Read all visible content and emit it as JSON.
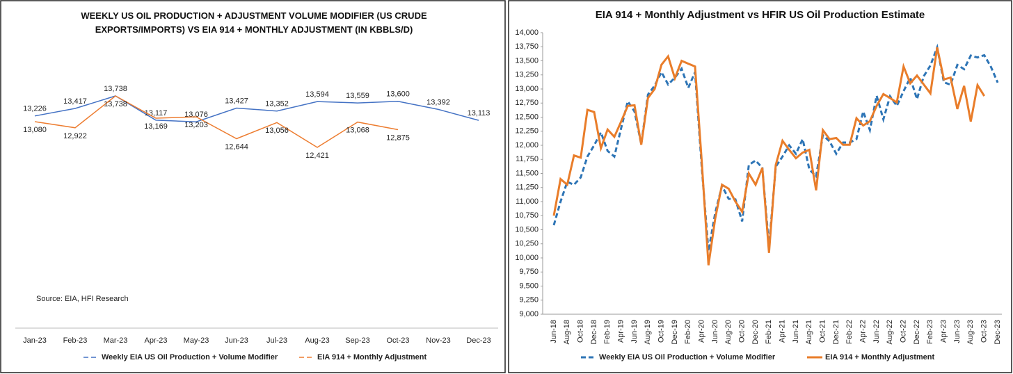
{
  "chart_data": [
    {
      "type": "line",
      "title": "WEEKLY US OIL PRODUCTION + ADJUSTMENT VOLUME MODIFIER (US CRUDE EXPORTS/IMPORTS) VS EIA 914 + MONTHLY ADJUSTMENT (IN KBBLS/D)",
      "source": "Source: EIA, HFI Research",
      "categories": [
        "Jan-23",
        "Feb-23",
        "Mar-23",
        "Apr-23",
        "May-23",
        "Jun-23",
        "Jul-23",
        "Aug-23",
        "Sep-23",
        "Oct-23",
        "Nov-23",
        "Dec-23"
      ],
      "series": [
        {
          "name": "Weekly EIA US Oil Production + Volume Modifier",
          "color": "#4472c4",
          "line_style": "solid",
          "values": [
            13226,
            13417,
            13738,
            13117,
            13076,
            13427,
            13352,
            13594,
            13559,
            13600,
            13392,
            13113
          ],
          "value_labels": [
            "13,226",
            "13,417",
            "13,738",
            "13,117",
            "13,076",
            "13,427",
            "13,352",
            "13,594",
            "13,559",
            "13,600",
            "13,392",
            "13,113"
          ]
        },
        {
          "name": "EIA 914 + Monthly Adjustment",
          "color": "#ed7d31",
          "line_style": "solid",
          "values": [
            13080,
            12922,
            13738,
            13169,
            13203,
            12644,
            13056,
            12421,
            13068,
            12875,
            null,
            null
          ],
          "value_labels": [
            "13,080",
            "12,922",
            "13,738",
            "13,169",
            "13,203",
            "12,644",
            "13,056",
            "12,421",
            "13,068",
            "12,875",
            null,
            null
          ]
        }
      ]
    },
    {
      "type": "line",
      "title": "EIA 914 + Monthly Adjustment vs HFIR US Oil Production Estimate",
      "categories": [
        "Jun-18",
        null,
        "Aug-18",
        null,
        "Oct-18",
        null,
        "Dec-18",
        null,
        "Feb-19",
        null,
        "Apr-19",
        null,
        "Jun-19",
        null,
        "Aug-19",
        null,
        "Oct-19",
        null,
        "Dec-19",
        null,
        "Feb-20",
        null,
        "Apr-20",
        null,
        "Jun-20",
        null,
        "Aug-20",
        null,
        "Oct-20",
        null,
        "Dec-20",
        null,
        "Feb-21",
        null,
        "Apr-21",
        null,
        "Jun-21",
        null,
        "Aug-21",
        null,
        "Oct-21",
        null,
        "Dec-21",
        null,
        "Feb-22",
        null,
        "Apr-22",
        null,
        "Jun-22",
        null,
        "Aug-22",
        null,
        "Oct-22",
        null,
        "Dec-22",
        null,
        "Feb-23",
        null,
        "Apr-23",
        null,
        "Jun-23",
        null,
        "Aug-23",
        null,
        "Oct-23",
        null,
        "Dec-23"
      ],
      "ylim": [
        9000,
        14000
      ],
      "yticks": [
        {
          "value": 9000,
          "label": "9,000"
        },
        {
          "value": 9250,
          "label": "9,250"
        },
        {
          "value": 9500,
          "label": "9,500"
        },
        {
          "value": 9750,
          "label": "9,750"
        },
        {
          "value": 10000,
          "label": "10,000"
        },
        {
          "value": 10250,
          "label": "10,250"
        },
        {
          "value": 10500,
          "label": "10,500"
        },
        {
          "value": 10750,
          "label": "10,750"
        },
        {
          "value": 11000,
          "label": "11,000"
        },
        {
          "value": 11250,
          "label": "11,250"
        },
        {
          "value": 11500,
          "label": "11,500"
        },
        {
          "value": 11750,
          "label": "11,750"
        },
        {
          "value": 12000,
          "label": "12,000"
        },
        {
          "value": 12250,
          "label": "12,250"
        },
        {
          "value": 12500,
          "label": "12,500"
        },
        {
          "value": 12750,
          "label": "12,750"
        },
        {
          "value": 13000,
          "label": "13,000"
        },
        {
          "value": 13250,
          "label": "13,250"
        },
        {
          "value": 13500,
          "label": "13,500"
        },
        {
          "value": 13750,
          "label": "13,750"
        },
        {
          "value": 14000,
          "label": "14,000"
        }
      ],
      "series": [
        {
          "name": "Weekly EIA US Oil Production + Volume Modifier",
          "color": "#2e75b6",
          "line_style": "dashed",
          "values": [
            10580,
            11000,
            11350,
            11300,
            11430,
            11800,
            12000,
            12230,
            11900,
            11800,
            12300,
            12780,
            12600,
            12020,
            12900,
            13060,
            13300,
            13080,
            13200,
            13360,
            13020,
            13300,
            11600,
            10120,
            10800,
            11280,
            11050,
            11040,
            10650,
            11650,
            11730,
            11600,
            10200,
            11620,
            11800,
            12000,
            11850,
            12110,
            11570,
            11450,
            12180,
            12070,
            11850,
            12050,
            12050,
            12110,
            12600,
            12270,
            12880,
            12460,
            12870,
            12700,
            12960,
            13200,
            12820,
            13226,
            13417,
            13738,
            13117,
            13076,
            13427,
            13352,
            13594,
            13559,
            13600,
            13392,
            13113
          ]
        },
        {
          "name": "EIA 914 + Monthly Adjustment",
          "color": "#e97d2a",
          "line_style": "solid",
          "values": [
            10750,
            11400,
            11300,
            11820,
            11780,
            12630,
            12590,
            11950,
            12280,
            12150,
            12420,
            12700,
            12710,
            12010,
            12840,
            13000,
            13430,
            13580,
            13190,
            13500,
            13450,
            13400,
            11700,
            9870,
            10700,
            11300,
            11230,
            11000,
            10820,
            11500,
            11300,
            11600,
            10090,
            11650,
            12080,
            11920,
            11770,
            11870,
            11920,
            11200,
            12270,
            12110,
            12130,
            12010,
            12010,
            12480,
            12350,
            12430,
            12700,
            12910,
            12840,
            12760,
            13400,
            13100,
            13240,
            13080,
            12922,
            13738,
            13169,
            13203,
            12644,
            13056,
            12421,
            13068,
            12875,
            null,
            null
          ]
        }
      ]
    }
  ]
}
